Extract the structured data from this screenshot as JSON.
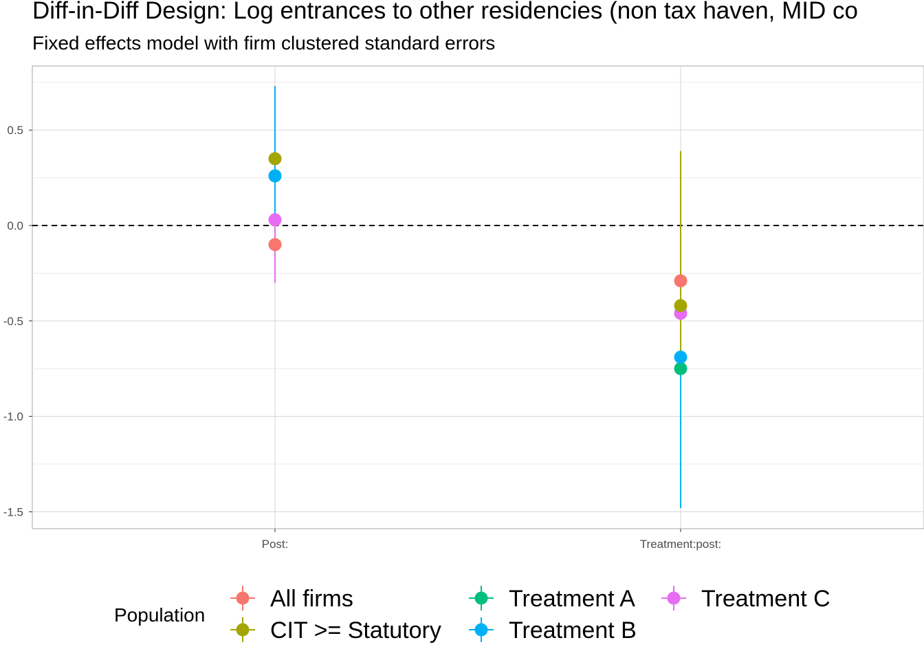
{
  "chart_data": {
    "type": "scatter",
    "title": "Diff-in-Diff Design: Log entrances to other residencies (non tax haven, MID co",
    "subtitle": "Fixed effects model with firm clustered standard errors",
    "xlabel": "",
    "ylabel": "",
    "categories": [
      "Post:",
      "Treatment:post:"
    ],
    "y_ticks": [
      {
        "value": 0.5,
        "label": "0.5"
      },
      {
        "value": 0.0,
        "label": "0.0"
      },
      {
        "value": -0.5,
        "label": "-0.5"
      },
      {
        "value": -1.0,
        "label": "-1.0"
      },
      {
        "value": -1.5,
        "label": "-1.5"
      }
    ],
    "ylim": [
      -1.58,
      0.84
    ],
    "reference_line": {
      "y": 0,
      "style": "dashed"
    },
    "grid": true,
    "legend": {
      "title": "Population",
      "position": "bottom"
    },
    "series": [
      {
        "name": "All firms",
        "color": "#F8766D",
        "points": [
          {
            "x": "Post:",
            "y": -0.1,
            "lo": -0.1,
            "hi": -0.1
          },
          {
            "x": "Treatment:post:",
            "y": -0.29,
            "lo": -0.29,
            "hi": -0.29
          }
        ]
      },
      {
        "name": "CIT >= Statutory",
        "color": "#A3A500",
        "points": [
          {
            "x": "Post:",
            "y": 0.35,
            "lo": -0.02,
            "hi": 0.71
          },
          {
            "x": "Treatment:post:",
            "y": -0.42,
            "lo": -1.22,
            "hi": 0.39
          }
        ]
      },
      {
        "name": "Treatment A",
        "color": "#00BF7D",
        "points": [
          {
            "x": "Post:",
            "y": 0.26,
            "lo": 0.26,
            "hi": 0.26
          },
          {
            "x": "Treatment:post:",
            "y": -0.75,
            "lo": -1.48,
            "hi": -0.75
          }
        ]
      },
      {
        "name": "Treatment B",
        "color": "#00B0F6",
        "points": [
          {
            "x": "Post:",
            "y": 0.26,
            "lo": 0.0,
            "hi": 0.73
          },
          {
            "x": "Treatment:post:",
            "y": -0.69,
            "lo": -1.48,
            "hi": -0.69
          }
        ]
      },
      {
        "name": "Treatment C",
        "color": "#E76BF3",
        "points": [
          {
            "x": "Post:",
            "y": 0.03,
            "lo": -0.3,
            "hi": 0.03
          },
          {
            "x": "Treatment:post:",
            "y": -0.46,
            "lo": -0.46,
            "hi": -0.46
          }
        ]
      }
    ]
  }
}
